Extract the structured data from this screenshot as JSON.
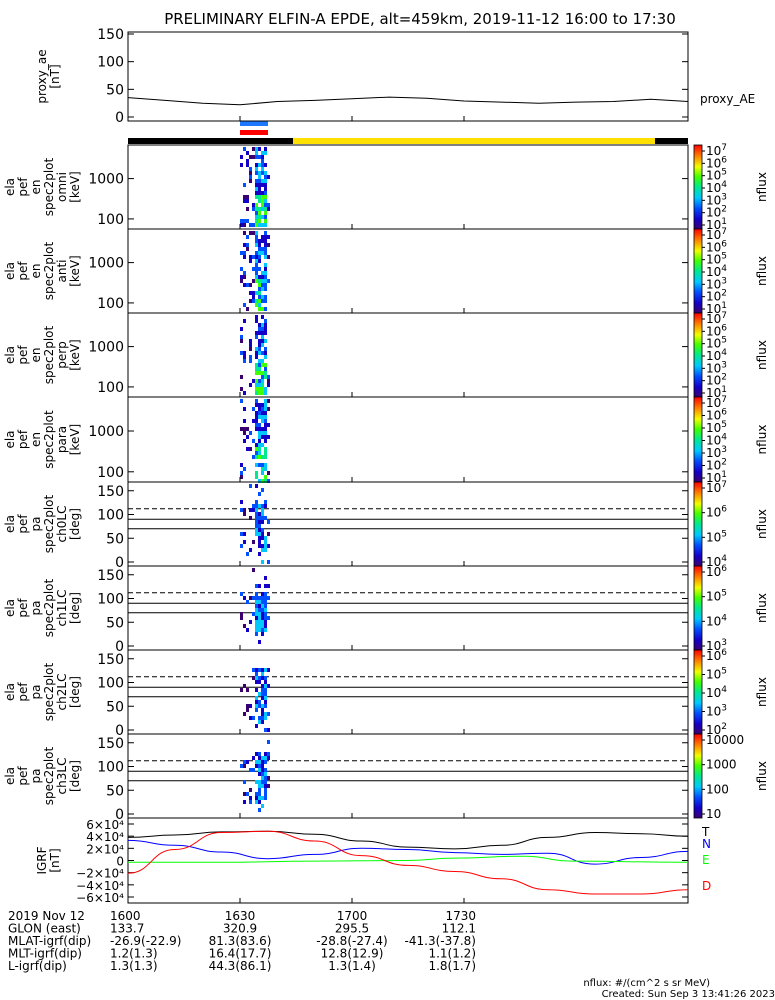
{
  "title": "PRELIMINARY ELFIN-A EPDE, alt=459km, 2019-11-12 16:00 to 17:30",
  "chart_data": [
    {
      "type": "line",
      "panel": "proxy_ae",
      "ylabel": [
        "proxy_ae",
        "[nT]"
      ],
      "yticks": [
        "150",
        "100",
        "50",
        "0"
      ],
      "ylim": [
        0,
        150
      ],
      "series": [
        {
          "name": "proxy_AE",
          "points": [
            [
              0,
              35
            ],
            [
              10,
              30
            ],
            [
              20,
              25
            ],
            [
              30,
              22
            ],
            [
              40,
              28
            ],
            [
              50,
              30
            ],
            [
              60,
              33
            ],
            [
              70,
              36
            ],
            [
              80,
              34
            ],
            [
              90,
              29
            ],
            [
              100,
              27
            ],
            [
              110,
              25
            ],
            [
              120,
              27
            ],
            [
              130,
              28
            ],
            [
              140,
              32
            ],
            [
              150,
              28
            ]
          ]
        }
      ]
    },
    {
      "type": "heatmap",
      "panel": "ela_pef_en_spec2plot_omni",
      "ylabel": [
        "ela",
        "pef",
        "en",
        "spec2plot",
        "omni",
        "[keV]"
      ],
      "yticks": [
        "1000",
        "100"
      ],
      "colorbar_ticks": [
        "10^7",
        "10^6",
        "10^5",
        "10^4",
        "10^3",
        "10^2",
        "10^1"
      ],
      "colorbar_label": "nflux"
    },
    {
      "type": "heatmap",
      "panel": "ela_pef_en_spec2plot_anti",
      "ylabel": [
        "ela",
        "pef",
        "en",
        "spec2plot",
        "anti",
        "[keV]"
      ],
      "yticks": [
        "1000",
        "100"
      ],
      "colorbar_ticks": [
        "10^7",
        "10^6",
        "10^5",
        "10^4",
        "10^3",
        "10^2",
        "10^1"
      ],
      "colorbar_label": "nflux"
    },
    {
      "type": "heatmap",
      "panel": "ela_pef_en_spec2plot_perp",
      "ylabel": [
        "ela",
        "pef",
        "en",
        "spec2plot",
        "perp",
        "[keV]"
      ],
      "yticks": [
        "1000",
        "100"
      ],
      "colorbar_ticks": [
        "10^7",
        "10^6",
        "10^5",
        "10^4",
        "10^3",
        "10^2",
        "10^1"
      ],
      "colorbar_label": "nflux"
    },
    {
      "type": "heatmap",
      "panel": "ela_pef_en_spec2plot_para",
      "ylabel": [
        "ela",
        "pef",
        "en",
        "spec2plot",
        "para",
        "[keV]"
      ],
      "yticks": [
        "1000",
        "100"
      ],
      "colorbar_ticks": [
        "10^7",
        "10^6",
        "10^5",
        "10^4",
        "10^3",
        "10^2",
        "10^1"
      ],
      "colorbar_label": "nflux"
    },
    {
      "type": "heatmap",
      "panel": "ela_pef_pa_spec2plot_ch0LC",
      "ylabel": [
        "ela",
        "pef",
        "pa",
        "spec2plot",
        "ch0LC",
        "[deg]"
      ],
      "yticks": [
        "150",
        "100",
        "50",
        "0"
      ],
      "colorbar_ticks": [
        "10^7",
        "10^6",
        "10^5",
        "10^4"
      ],
      "colorbar_label": "nflux"
    },
    {
      "type": "heatmap",
      "panel": "ela_pef_pa_spec2plot_ch1LC",
      "ylabel": [
        "ela",
        "pef",
        "pa",
        "spec2plot",
        "ch1LC",
        "[deg]"
      ],
      "yticks": [
        "150",
        "100",
        "50",
        "0"
      ],
      "colorbar_ticks": [
        "10^6",
        "10^5",
        "10^4",
        "10^3"
      ],
      "colorbar_label": "nflux"
    },
    {
      "type": "heatmap",
      "panel": "ela_pef_pa_spec2plot_ch2LC",
      "ylabel": [
        "ela",
        "pef",
        "pa",
        "spec2plot",
        "ch2LC",
        "[deg]"
      ],
      "yticks": [
        "150",
        "100",
        "50",
        "0"
      ],
      "colorbar_ticks": [
        "10^6",
        "10^5",
        "10^4",
        "10^3",
        "10^2"
      ],
      "colorbar_label": "nflux"
    },
    {
      "type": "heatmap",
      "panel": "ela_pef_pa_spec2plot_ch3LC",
      "ylabel": [
        "ela",
        "pef",
        "pa",
        "spec2plot",
        "ch3LC",
        "[deg]"
      ],
      "yticks": [
        "150",
        "100",
        "50",
        "0"
      ],
      "colorbar_ticks": [
        "10000",
        "1000",
        "100",
        "10"
      ],
      "colorbar_label": "nflux"
    },
    {
      "type": "line",
      "panel": "IGRF",
      "ylabel": [
        "IGRF",
        "[nT]"
      ],
      "yticks": [
        "6×10⁴",
        "4×10⁴",
        "2×10⁴",
        "0",
        "−2×10⁴",
        "−4×10⁴",
        "−6×10⁴"
      ],
      "ylim": [
        -60000,
        60000
      ],
      "series": [
        {
          "name": "T",
          "color": "#000000",
          "points": [
            [
              0,
              38000
            ],
            [
              10,
              42000
            ],
            [
              20,
              47000
            ],
            [
              30,
              48000
            ],
            [
              40,
              43000
            ],
            [
              50,
              32000
            ],
            [
              60,
              22000
            ],
            [
              70,
              19000
            ],
            [
              80,
              25000
            ],
            [
              90,
              38000
            ],
            [
              100,
              46000
            ],
            [
              110,
              44000
            ],
            [
              120,
              40000
            ]
          ]
        },
        {
          "name": "N",
          "color": "#0000ff",
          "points": [
            [
              0,
              33000
            ],
            [
              10,
              25000
            ],
            [
              20,
              14000
            ],
            [
              30,
              3000
            ],
            [
              40,
              10000
            ],
            [
              50,
              20000
            ],
            [
              60,
              18000
            ],
            [
              70,
              13000
            ],
            [
              80,
              10000
            ],
            [
              90,
              12000
            ],
            [
              100,
              -6000
            ],
            [
              110,
              5000
            ],
            [
              120,
              15000
            ]
          ]
        },
        {
          "name": "E",
          "color": "#00ff00",
          "points": [
            [
              0,
              -3000
            ],
            [
              20,
              -3000
            ],
            [
              40,
              -1000
            ],
            [
              60,
              0
            ],
            [
              70,
              4000
            ],
            [
              85,
              7000
            ],
            [
              95,
              -1000
            ],
            [
              120,
              -3000
            ]
          ]
        },
        {
          "name": "D",
          "color": "#ff0000",
          "points": [
            [
              0,
              -21000
            ],
            [
              10,
              18000
            ],
            [
              20,
              46000
            ],
            [
              30,
              48000
            ],
            [
              40,
              32000
            ],
            [
              50,
              8000
            ],
            [
              60,
              -8000
            ],
            [
              70,
              -18000
            ],
            [
              80,
              -30000
            ],
            [
              90,
              -48000
            ],
            [
              100,
              -55000
            ],
            [
              110,
              -55000
            ],
            [
              120,
              -48000
            ]
          ]
        }
      ]
    }
  ],
  "xaxis": {
    "ticks": [
      "1600",
      "1630",
      "1700",
      "1730"
    ],
    "rows": [
      {
        "label": "2019 Nov 12",
        "values": [
          "1600",
          "1630",
          "1700",
          "1730"
        ]
      },
      {
        "label": "GLON (east)",
        "values": [
          "133.7",
          "320.9",
          "295.5",
          "112.1"
        ]
      },
      {
        "label": "MLAT-igrf(dip)",
        "values": [
          "-26.9(-22.9)",
          "81.3(83.6)",
          "-28.8(-27.4)",
          "-41.3(-37.8)"
        ]
      },
      {
        "label": "MLT-igrf(dip)",
        "values": [
          "1.2(1.3)",
          "16.4(17.7)",
          "12.8(12.9)",
          "1.1(1.2)"
        ]
      },
      {
        "label": "L-igrf(dip)",
        "values": [
          "1.3(1.3)",
          "44.3(86.1)",
          "1.3(1.4)",
          "1.8(1.7)"
        ]
      }
    ]
  },
  "footer": {
    "units": "nflux: #/(cm^2 s sr MeV)",
    "created": "Created: Sun Sep  3 13:41:26 2023"
  },
  "colors": {
    "status_blue": "#1e78ff",
    "status_red": "#ff0000",
    "status_yellow": "#ffe000",
    "status_black": "#000000"
  }
}
